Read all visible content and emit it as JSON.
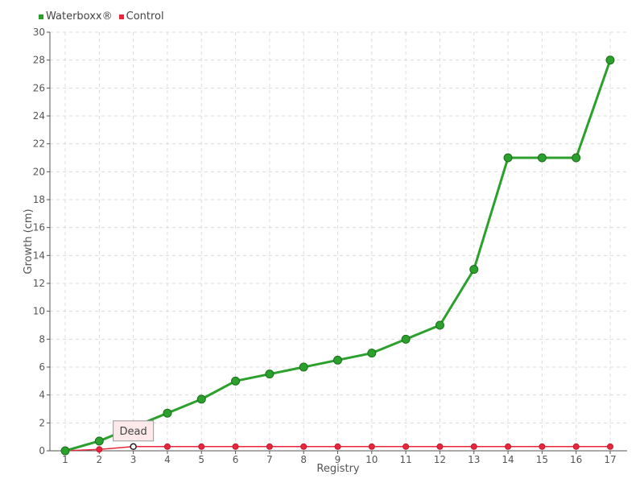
{
  "chart_data": {
    "type": "line",
    "categories": [
      "1",
      "2",
      "3",
      "4",
      "5",
      "6",
      "7",
      "8",
      "9",
      "10",
      "11",
      "12",
      "13",
      "14",
      "15",
      "16",
      "17"
    ],
    "xlabel": "Registry",
    "ylabel": "Growth (cm)",
    "ylim": [
      0,
      30
    ],
    "yticks": [
      "0",
      "2",
      "4",
      "6",
      "8",
      "10",
      "12",
      "14",
      "16",
      "18",
      "20",
      "22",
      "24",
      "26",
      "28",
      "30"
    ],
    "grid": true,
    "legend_position": "top-left",
    "series": [
      {
        "name": "Waterboxx®",
        "color": "#2ca02c",
        "values": [
          0,
          0.7,
          1.7,
          2.7,
          3.7,
          5,
          5.5,
          6,
          6.5,
          7,
          8,
          9,
          13,
          21,
          21,
          21,
          28
        ]
      },
      {
        "name": "Control",
        "color": "#e8273d",
        "values": [
          0,
          0.1,
          0.3,
          0.3,
          0.3,
          0.3,
          0.3,
          0.3,
          0.3,
          0.3,
          0.3,
          0.3,
          0.3,
          0.3,
          0.3,
          0.3,
          0.3
        ]
      }
    ],
    "annotations": [
      {
        "text": "Dead",
        "series": "Control",
        "category": "3"
      }
    ]
  }
}
